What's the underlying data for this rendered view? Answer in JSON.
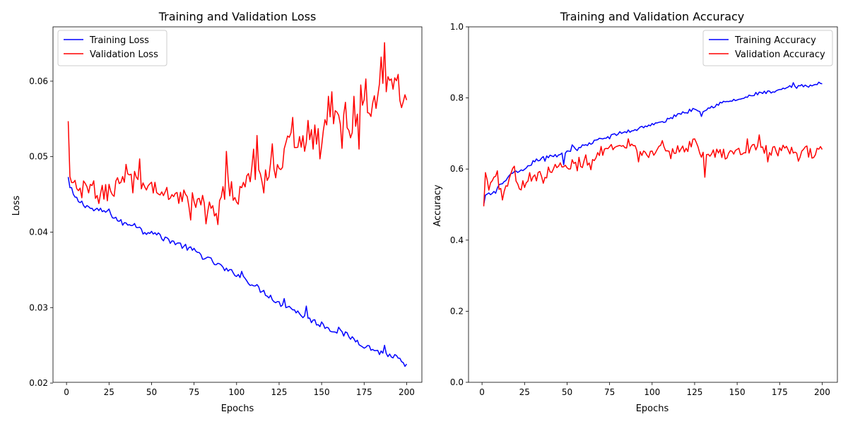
{
  "colors": {
    "training": "#0000ff",
    "validation": "#ff0000",
    "axes": "#000000",
    "legend_border": "#cccccc"
  },
  "chart_data": [
    {
      "type": "line",
      "title": "Training and Validation Loss",
      "xlabel": "Epochs",
      "ylabel": "Loss",
      "xlim": [
        -7.95,
        208.95
      ],
      "ylim": [
        0.0201,
        0.0672
      ],
      "xticks": [
        0,
        25,
        50,
        75,
        100,
        125,
        150,
        175,
        200
      ],
      "xtick_labels": [
        "0",
        "25",
        "50",
        "75",
        "100",
        "125",
        "150",
        "175",
        "200"
      ],
      "yticks": [
        0.02,
        0.03,
        0.04,
        0.05,
        0.06
      ],
      "ytick_labels": [
        "0.02",
        "0.03",
        "0.04",
        "0.05",
        "0.06"
      ],
      "legend_position": "upper-left",
      "grid": false,
      "series": [
        {
          "name": "Training Loss",
          "color": "#0000ff",
          "anchors": [
            [
              1,
              0.0473
            ],
            [
              2,
              0.0458
            ],
            [
              3,
              0.0455
            ],
            [
              5,
              0.0445
            ],
            [
              8,
              0.044
            ],
            [
              12,
              0.0435
            ],
            [
              15,
              0.043
            ],
            [
              20,
              0.0428
            ],
            [
              25,
              0.0427
            ],
            [
              28,
              0.042
            ],
            [
              32,
              0.0413
            ],
            [
              35,
              0.041
            ],
            [
              40,
              0.0412
            ],
            [
              45,
              0.04
            ],
            [
              50,
              0.0402
            ],
            [
              55,
              0.0393
            ],
            [
              60,
              0.039
            ],
            [
              65,
              0.0385
            ],
            [
              70,
              0.038
            ],
            [
              75,
              0.0375
            ],
            [
              80,
              0.0368
            ],
            [
              85,
              0.0362
            ],
            [
              90,
              0.0355
            ],
            [
              95,
              0.0348
            ],
            [
              100,
              0.0345
            ],
            [
              105,
              0.0338
            ],
            [
              110,
              0.033
            ],
            [
              115,
              0.0322
            ],
            [
              120,
              0.0315
            ],
            [
              125,
              0.0305
            ],
            [
              130,
              0.0303
            ],
            [
              135,
              0.0295
            ],
            [
              140,
              0.0288
            ],
            [
              145,
              0.0282
            ],
            [
              150,
              0.0277
            ],
            [
              155,
              0.0272
            ],
            [
              160,
              0.0268
            ],
            [
              165,
              0.0263
            ],
            [
              170,
              0.0257
            ],
            [
              175,
              0.025
            ],
            [
              180,
              0.0245
            ],
            [
              185,
              0.024
            ],
            [
              190,
              0.0237
            ],
            [
              195,
              0.0233
            ],
            [
              198,
              0.0225
            ],
            [
              199,
              0.022
            ],
            [
              200,
              0.0222
            ]
          ],
          "noise": 0.0004,
          "spikes": [
            [
              42,
              0.0406
            ],
            [
              54,
              0.0399
            ],
            [
              78,
              0.0373
            ],
            [
              90,
              0.0358
            ],
            [
              103,
              0.0348
            ],
            [
              128,
              0.0312
            ],
            [
              141,
              0.0302
            ],
            [
              150,
              0.0281
            ],
            [
              160,
              0.0274
            ],
            [
              187,
              0.025
            ]
          ]
        },
        {
          "name": "Validation Loss",
          "color": "#ff0000",
          "anchors": [
            [
              1,
              0.0547
            ],
            [
              2,
              0.047
            ],
            [
              3,
              0.0458
            ],
            [
              5,
              0.046
            ],
            [
              8,
              0.0452
            ],
            [
              12,
              0.0458
            ],
            [
              15,
              0.0455
            ],
            [
              20,
              0.0448
            ],
            [
              25,
              0.0455
            ],
            [
              30,
              0.0462
            ],
            [
              35,
              0.0478
            ],
            [
              40,
              0.0468
            ],
            [
              45,
              0.0462
            ],
            [
              50,
              0.046
            ],
            [
              55,
              0.0452
            ],
            [
              60,
              0.0448
            ],
            [
              65,
              0.0452
            ],
            [
              70,
              0.0445
            ],
            [
              75,
              0.044
            ],
            [
              80,
              0.0438
            ],
            [
              85,
              0.043
            ],
            [
              90,
              0.044
            ],
            [
              95,
              0.0462
            ],
            [
              100,
              0.045
            ],
            [
              105,
              0.0465
            ],
            [
              110,
              0.048
            ],
            [
              115,
              0.0465
            ],
            [
              120,
              0.049
            ],
            [
              125,
              0.048
            ],
            [
              130,
              0.0515
            ],
            [
              135,
              0.0525
            ],
            [
              140,
              0.052
            ],
            [
              145,
              0.053
            ],
            [
              150,
              0.0525
            ],
            [
              155,
              0.056
            ],
            [
              160,
              0.0545
            ],
            [
              165,
              0.0548
            ],
            [
              170,
              0.054
            ],
            [
              175,
              0.0565
            ],
            [
              180,
              0.0565
            ],
            [
              185,
              0.059
            ],
            [
              190,
              0.0595
            ],
            [
              195,
              0.059
            ],
            [
              198,
              0.0575
            ],
            [
              200,
              0.0578
            ]
          ],
          "noise": 0.0013,
          "spikes": [
            [
              13,
              0.0452
            ],
            [
              16,
              0.0468
            ],
            [
              39,
              0.0452
            ],
            [
              43,
              0.0497
            ],
            [
              52,
              0.0466
            ],
            [
              63,
              0.0447
            ],
            [
              73,
              0.0416
            ],
            [
              82,
              0.0411
            ],
            [
              89,
              0.041
            ],
            [
              94,
              0.0507
            ],
            [
              96,
              0.0448
            ],
            [
              101,
              0.0437
            ],
            [
              110,
              0.051
            ],
            [
              112,
              0.0528
            ],
            [
              116,
              0.0452
            ],
            [
              121,
              0.0517
            ],
            [
              133,
              0.0552
            ],
            [
              142,
              0.0548
            ],
            [
              145,
              0.051
            ],
            [
              149,
              0.0497
            ],
            [
              154,
              0.058
            ],
            [
              156,
              0.0586
            ],
            [
              162,
              0.0511
            ],
            [
              164,
              0.0572
            ],
            [
              167,
              0.0525
            ],
            [
              169,
              0.058
            ],
            [
              172,
              0.051
            ],
            [
              173,
              0.0595
            ],
            [
              176,
              0.0603
            ],
            [
              182,
              0.0564
            ],
            [
              185,
              0.0632
            ],
            [
              187,
              0.0651
            ],
            [
              188,
              0.0586
            ],
            [
              191,
              0.0603
            ],
            [
              195,
              0.0609
            ],
            [
              197,
              0.0565
            ]
          ],
          "last": 0.0575
        }
      ]
    },
    {
      "type": "line",
      "title": "Training and Validation Accuracy",
      "xlabel": "Epochs",
      "ylabel": "Accuracy",
      "xlim": [
        -7.95,
        208.95
      ],
      "ylim": [
        0,
        1
      ],
      "xticks": [
        0,
        25,
        50,
        75,
        100,
        125,
        150,
        175,
        200
      ],
      "xtick_labels": [
        "0",
        "25",
        "50",
        "75",
        "100",
        "125",
        "150",
        "175",
        "200"
      ],
      "yticks": [
        0,
        0.2,
        0.4,
        0.6,
        0.8,
        1.0
      ],
      "ytick_labels": [
        "0.0",
        "0.2",
        "0.4",
        "0.6",
        "0.8",
        "1.0"
      ],
      "legend_position": "upper-right",
      "grid": false,
      "series": [
        {
          "name": "Training Accuracy",
          "color": "#0000ff",
          "anchors": [
            [
              1,
              0.5
            ],
            [
              2,
              0.525
            ],
            [
              5,
              0.53
            ],
            [
              8,
              0.535
            ],
            [
              10,
              0.555
            ],
            [
              13,
              0.56
            ],
            [
              15,
              0.58
            ],
            [
              20,
              0.59
            ],
            [
              25,
              0.595
            ],
            [
              30,
              0.62
            ],
            [
              35,
              0.63
            ],
            [
              40,
              0.635
            ],
            [
              45,
              0.64
            ],
            [
              50,
              0.65
            ],
            [
              55,
              0.66
            ],
            [
              60,
              0.665
            ],
            [
              65,
              0.675
            ],
            [
              70,
              0.685
            ],
            [
              75,
              0.69
            ],
            [
              80,
              0.7
            ],
            [
              85,
              0.705
            ],
            [
              90,
              0.71
            ],
            [
              95,
              0.72
            ],
            [
              100,
              0.725
            ],
            [
              105,
              0.73
            ],
            [
              110,
              0.74
            ],
            [
              115,
              0.755
            ],
            [
              120,
              0.76
            ],
            [
              125,
              0.77
            ],
            [
              130,
              0.765
            ],
            [
              135,
              0.775
            ],
            [
              140,
              0.785
            ],
            [
              145,
              0.79
            ],
            [
              150,
              0.795
            ],
            [
              155,
              0.8
            ],
            [
              160,
              0.81
            ],
            [
              165,
              0.815
            ],
            [
              170,
              0.815
            ],
            [
              175,
              0.82
            ],
            [
              180,
              0.83
            ],
            [
              185,
              0.83
            ],
            [
              190,
              0.835
            ],
            [
              195,
              0.835
            ],
            [
              198,
              0.84
            ],
            [
              200,
              0.84
            ]
          ],
          "noise": 0.005,
          "spikes": [
            [
              37,
              0.622
            ],
            [
              48,
              0.612
            ],
            [
              53,
              0.668
            ],
            [
              56,
              0.652
            ],
            [
              129,
              0.748
            ],
            [
              183,
              0.843
            ]
          ]
        },
        {
          "name": "Validation Accuracy",
          "color": "#ff0000",
          "anchors": [
            [
              1,
              0.495
            ],
            [
              2,
              0.585
            ],
            [
              4,
              0.55
            ],
            [
              7,
              0.59
            ],
            [
              10,
              0.555
            ],
            [
              13,
              0.54
            ],
            [
              15,
              0.56
            ],
            [
              18,
              0.6
            ],
            [
              22,
              0.545
            ],
            [
              25,
              0.56
            ],
            [
              30,
              0.58
            ],
            [
              35,
              0.58
            ],
            [
              40,
              0.595
            ],
            [
              45,
              0.61
            ],
            [
              50,
              0.6
            ],
            [
              55,
              0.625
            ],
            [
              60,
              0.615
            ],
            [
              65,
              0.63
            ],
            [
              70,
              0.65
            ],
            [
              75,
              0.655
            ],
            [
              80,
              0.655
            ],
            [
              85,
              0.66
            ],
            [
              90,
              0.655
            ],
            [
              95,
              0.64
            ],
            [
              100,
              0.65
            ],
            [
              105,
              0.655
            ],
            [
              110,
              0.64
            ],
            [
              115,
              0.655
            ],
            [
              120,
              0.66
            ],
            [
              125,
              0.675
            ],
            [
              130,
              0.64
            ],
            [
              135,
              0.64
            ],
            [
              140,
              0.645
            ],
            [
              145,
              0.64
            ],
            [
              150,
              0.65
            ],
            [
              155,
              0.65
            ],
            [
              160,
              0.66
            ],
            [
              165,
              0.66
            ],
            [
              170,
              0.65
            ],
            [
              175,
              0.65
            ],
            [
              180,
              0.65
            ],
            [
              185,
              0.645
            ],
            [
              190,
              0.65
            ],
            [
              195,
              0.64
            ],
            [
              200,
              0.655
            ]
          ],
          "noise": 0.014,
          "spikes": [
            [
              9,
              0.595
            ],
            [
              12,
              0.513
            ],
            [
              19,
              0.608
            ],
            [
              28,
              0.59
            ],
            [
              36,
              0.56
            ],
            [
              56,
              0.595
            ],
            [
              61,
              0.64
            ],
            [
              64,
              0.598
            ],
            [
              86,
              0.685
            ],
            [
              92,
              0.62
            ],
            [
              106,
              0.68
            ],
            [
              125,
              0.685
            ],
            [
              131,
              0.577
            ],
            [
              156,
              0.685
            ],
            [
              163,
              0.696
            ],
            [
              168,
              0.62
            ],
            [
              177,
              0.667
            ],
            [
              186,
              0.622
            ],
            [
              191,
              0.665
            ]
          ],
          "last": 0.655
        }
      ]
    }
  ]
}
